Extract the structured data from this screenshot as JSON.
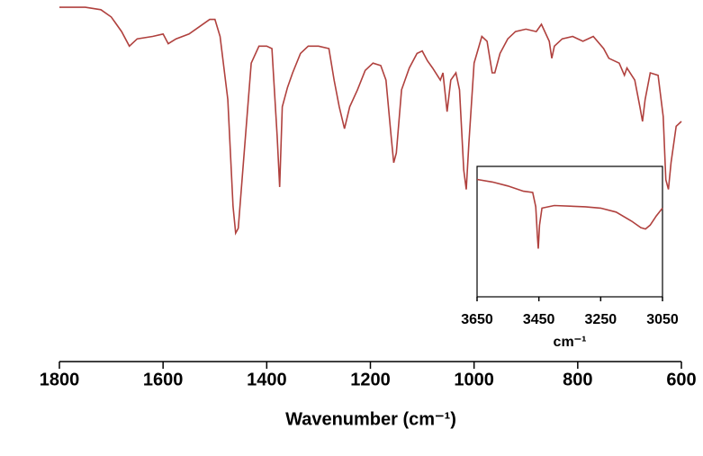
{
  "chart_data": [
    {
      "type": "line",
      "x_label": "Wavenumber (cm⁻¹)",
      "xlim": [
        1800,
        600
      ],
      "xticks": [
        1800,
        1600,
        1400,
        1200,
        1000,
        800,
        600
      ],
      "ylim": [
        0,
        100
      ],
      "series": [
        {
          "color": "#b0413e",
          "x": [
            1800,
            1750,
            1720,
            1700,
            1680,
            1665,
            1650,
            1620,
            1600,
            1590,
            1575,
            1550,
            1530,
            1510,
            1500,
            1490,
            1475,
            1465,
            1460,
            1455,
            1445,
            1430,
            1415,
            1400,
            1390,
            1380,
            1375,
            1370,
            1360,
            1350,
            1335,
            1320,
            1300,
            1280,
            1270,
            1260,
            1250,
            1240,
            1225,
            1210,
            1195,
            1180,
            1170,
            1160,
            1155,
            1150,
            1140,
            1125,
            1110,
            1100,
            1090,
            1080,
            1065,
            1060,
            1052,
            1045,
            1035,
            1028,
            1020,
            1015,
            1010,
            1000,
            985,
            975,
            965,
            960,
            950,
            935,
            920,
            900,
            880,
            870,
            855,
            850,
            845,
            830,
            810,
            790,
            770,
            750,
            740,
            720,
            710,
            705,
            690,
            680,
            675,
            670,
            660,
            645,
            635,
            630,
            625,
            620,
            610,
            600
          ],
          "values": [
            97,
            97,
            96,
            93,
            87,
            81,
            84,
            85,
            86,
            82,
            84,
            86,
            89,
            92,
            92,
            85,
            59,
            15,
            4,
            6,
            33,
            74,
            81,
            81,
            80,
            44,
            23,
            56,
            64,
            70,
            78,
            81,
            81,
            80,
            67,
            56,
            47,
            56,
            63,
            71,
            74,
            73,
            67,
            44,
            33,
            37,
            63,
            72,
            78,
            79,
            75,
            72,
            67,
            70,
            54,
            67,
            70,
            63,
            30,
            22,
            41,
            74,
            85,
            83,
            70,
            70,
            78,
            84,
            87,
            88,
            87,
            90,
            83,
            76,
            81,
            84,
            85,
            83,
            85,
            80,
            76,
            74,
            69,
            72,
            67,
            56,
            50,
            59,
            70,
            69,
            52,
            26,
            22,
            33,
            48,
            50
          ]
        }
      ]
    },
    {
      "type": "line",
      "x_label": "cm⁻¹",
      "xlim": [
        3650,
        3050
      ],
      "xticks": [
        3650,
        3450,
        3250,
        3050
      ],
      "ylim": [
        0,
        100
      ],
      "series": [
        {
          "color": "#b0413e",
          "x": [
            3650,
            3600,
            3550,
            3500,
            3470,
            3460,
            3455,
            3452,
            3448,
            3440,
            3400,
            3300,
            3250,
            3200,
            3150,
            3120,
            3105,
            3090,
            3070,
            3050
          ],
          "values": [
            90,
            88,
            85,
            81,
            80,
            69,
            47,
            37,
            55,
            68,
            70,
            69,
            68,
            65,
            58,
            53,
            52,
            55,
            62,
            68
          ]
        }
      ]
    }
  ]
}
